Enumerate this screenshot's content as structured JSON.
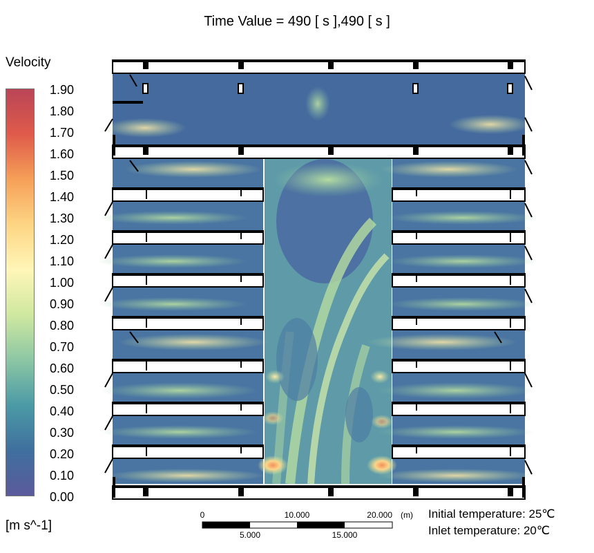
{
  "title": "Time Value = 490 [ s ],490 [ s ]",
  "legend": {
    "title": "Velocity",
    "unit": "[m s^-1]",
    "ticks": [
      "1.90",
      "1.80",
      "1.70",
      "1.60",
      "1.50",
      "1.40",
      "1.30",
      "1.20",
      "1.10",
      "1.00",
      "0.90",
      "0.80",
      "0.70",
      "0.60",
      "0.50",
      "0.40",
      "0.30",
      "0.20",
      "0.10",
      "0.00"
    ],
    "colors": [
      "#5b5a9c",
      "#3f6f9e",
      "#4b9aa6",
      "#8cc6a4",
      "#cfe8a0",
      "#fff6b8",
      "#fdd584",
      "#f6a058",
      "#df5b4b",
      "#b94556"
    ]
  },
  "scale": {
    "top_labels": [
      "0",
      "10.000",
      "20.000"
    ],
    "bottom_labels": [
      "5.000",
      "15.000"
    ],
    "unit": "(m)"
  },
  "notes": {
    "initial": "Initial temperature: 25℃",
    "inlet": "Inlet temperature: 20℃"
  }
}
